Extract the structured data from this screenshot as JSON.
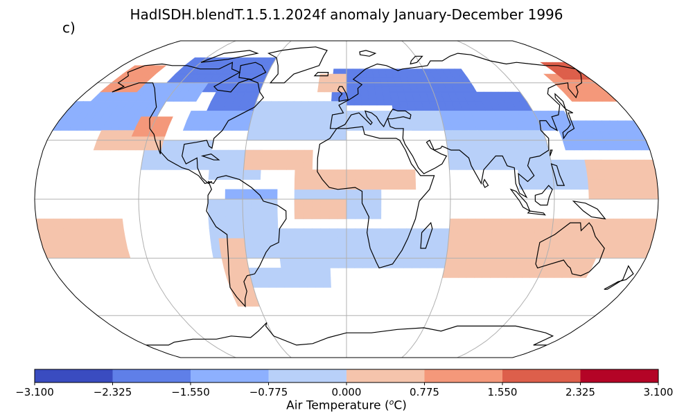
{
  "title": "HadISDH.blendT.1.5.1.2024f anomaly January-December 1996",
  "panel_label": "c)",
  "map": {
    "projection": "robinson",
    "graticule_lon_step_deg": 60,
    "graticule_lat_step_deg": 30,
    "colors": {
      "land_outline": "#000000",
      "graticule": "#b0b0b0",
      "background": "#ffffff"
    },
    "anomaly_regions": [
      {
        "bin": 0,
        "lon": [
          -100,
          -80
        ],
        "lat": [
          57,
          67
        ]
      },
      {
        "bin": 0,
        "lon": [
          -85,
          -70
        ],
        "lat": [
          52,
          60
        ]
      },
      {
        "bin": 0,
        "lon": [
          -10,
          40
        ],
        "lat": [
          57,
          67
        ]
      },
      {
        "bin": 1,
        "lon": [
          -130,
          -60
        ],
        "lat": [
          55,
          72
        ]
      },
      {
        "bin": 1,
        "lon": [
          -90,
          -60
        ],
        "lat": [
          45,
          55
        ]
      },
      {
        "bin": 1,
        "lon": [
          -10,
          90
        ],
        "lat": [
          48,
          67
        ]
      },
      {
        "bin": 1,
        "lon": [
          30,
          120
        ],
        "lat": [
          45,
          55
        ]
      },
      {
        "bin": 2,
        "lon": [
          -180,
          -120
        ],
        "lat": [
          35,
          50
        ]
      },
      {
        "bin": 2,
        "lon": [
          -170,
          -100
        ],
        "lat": [
          50,
          58
        ]
      },
      {
        "bin": 2,
        "lon": [
          -100,
          -60
        ],
        "lat": [
          35,
          45
        ]
      },
      {
        "bin": 2,
        "lon": [
          40,
          140
        ],
        "lat": [
          35,
          45
        ]
      },
      {
        "bin": 2,
        "lon": [
          130,
          180
        ],
        "lat": [
          25,
          40
        ]
      },
      {
        "bin": 2,
        "lon": [
          -70,
          -40
        ],
        "lat": [
          -5,
          5
        ]
      },
      {
        "bin": 3,
        "lon": [
          -60,
          0
        ],
        "lat": [
          30,
          50
        ]
      },
      {
        "bin": 3,
        "lon": [
          0,
          60
        ],
        "lat": [
          35,
          45
        ]
      },
      {
        "bin": 3,
        "lon": [
          60,
          120
        ],
        "lat": [
          15,
          35
        ]
      },
      {
        "bin": 3,
        "lon": [
          -120,
          -80
        ],
        "lat": [
          15,
          30
        ]
      },
      {
        "bin": 3,
        "lon": [
          -80,
          -40
        ],
        "lat": [
          -30,
          0
        ]
      },
      {
        "bin": 3,
        "lon": [
          -40,
          60
        ],
        "lat": [
          -35,
          -15
        ]
      },
      {
        "bin": 3,
        "lon": [
          -30,
          20
        ],
        "lat": [
          -10,
          5
        ]
      },
      {
        "bin": 3,
        "lon": [
          -80,
          -50
        ],
        "lat": [
          10,
          25
        ]
      },
      {
        "bin": 3,
        "lon": [
          100,
          150
        ],
        "lat": [
          5,
          20
        ]
      },
      {
        "bin": 3,
        "lon": [
          -60,
          -10
        ],
        "lat": [
          -45,
          -35
        ]
      },
      {
        "bin": 4,
        "lon": [
          -30,
          40
        ],
        "lat": [
          5,
          15
        ]
      },
      {
        "bin": 4,
        "lon": [
          -150,
          -110
        ],
        "lat": [
          25,
          35
        ]
      },
      {
        "bin": 4,
        "lon": [
          -60,
          -20
        ],
        "lat": [
          15,
          25
        ]
      },
      {
        "bin": 4,
        "lon": [
          -20,
          0
        ],
        "lat": [
          55,
          65
        ]
      },
      {
        "bin": 4,
        "lon": [
          60,
          150
        ],
        "lat": [
          -40,
          -10
        ]
      },
      {
        "bin": 4,
        "lon": [
          150,
          180
        ],
        "lat": [
          -30,
          -10
        ]
      },
      {
        "bin": 4,
        "lon": [
          140,
          180
        ],
        "lat": [
          0,
          20
        ]
      },
      {
        "bin": 4,
        "lon": [
          -180,
          -130
        ],
        "lat": [
          -30,
          -10
        ]
      },
      {
        "bin": 4,
        "lon": [
          -75,
          -60
        ],
        "lat": [
          -55,
          -20
        ]
      },
      {
        "bin": 4,
        "lon": [
          -30,
          0
        ],
        "lat": [
          -10,
          0
        ]
      },
      {
        "bin": 5,
        "lon": [
          -170,
          -145
        ],
        "lat": [
          55,
          70
        ]
      },
      {
        "bin": 5,
        "lon": [
          150,
          180
        ],
        "lat": [
          50,
          65
        ]
      },
      {
        "bin": 5,
        "lon": [
          -130,
          -110
        ],
        "lat": [
          32,
          40
        ]
      },
      {
        "bin": 6,
        "lon": [
          160,
          180
        ],
        "lat": [
          62,
          72
        ]
      }
    ]
  },
  "colorbar": {
    "label": "Air Temperature (oC)",
    "label_main": "Air Temperature (",
    "label_sup": "o",
    "label_end": "C)",
    "boundaries": [
      -3.1,
      -2.325,
      -1.55,
      -0.775,
      0.0,
      0.775,
      1.55,
      2.325,
      3.1
    ],
    "tick_labels": [
      "−3.100",
      "−2.325",
      "−1.550",
      "−0.775",
      "0.000",
      "0.775",
      "1.550",
      "2.325",
      "3.100"
    ],
    "colors": [
      "#3a4cc0",
      "#5f7fe8",
      "#8db0fe",
      "#b8d0f9",
      "#f5c4ac",
      "#f4987a",
      "#dd5f4b",
      "#b40426"
    ]
  }
}
